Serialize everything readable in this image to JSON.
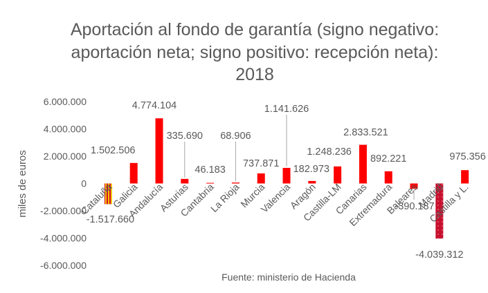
{
  "chart_data": {
    "type": "bar",
    "title_lines": [
      "Aportación al fondo de garantía (signo negativo:",
      "aportación neta; signo positivo: recepción neta):",
      "2018"
    ],
    "ylabel": "miles de euros",
    "xlabel": "",
    "source": "Fuente: ministerio de Hacienda",
    "ylim": [
      -6000000,
      6000000
    ],
    "yticks": [
      6000000,
      4000000,
      2000000,
      0,
      -2000000,
      -4000000,
      -6000000
    ],
    "ytick_labels": [
      "6.000.000",
      "4.000.000",
      "2.000.000",
      "0",
      "-2.000.000",
      "-4.000.000",
      "-6.000.000"
    ],
    "categories": [
      "Cataluña",
      "Galicia",
      "Andalucía",
      "Asturias",
      "Cantabria",
      "La Rioja",
      "Murcia",
      "Valencia",
      "Aragón",
      "Castilla-LM",
      "Canarias",
      "Extremadura",
      "Baleares",
      "Madrid",
      "Castilla y L."
    ],
    "values": [
      -1517660,
      1502506,
      4774104,
      335690,
      46183,
      68906,
      737871,
      1141626,
      182973,
      1248236,
      2833521,
      892221,
      -390187,
      -4039312,
      975356
    ],
    "value_labels": [
      "-1.517.660",
      "1.502.506",
      "4.774.104",
      "335.690",
      "46.183",
      "68.906",
      "737.871",
      "1.141.626",
      "182.973",
      "1.248.236",
      "2.833.521",
      "892.221",
      "-390.187",
      "-4.039.312",
      "975.356"
    ],
    "colors": {
      "bar": "#ff0000",
      "catalonia_stripe_a": "#f5c300",
      "catalonia_stripe_b": "#d2102a",
      "madrid": "#c8102e",
      "text": "#595959",
      "leader": "#a6a6a6"
    },
    "grid": false
  }
}
